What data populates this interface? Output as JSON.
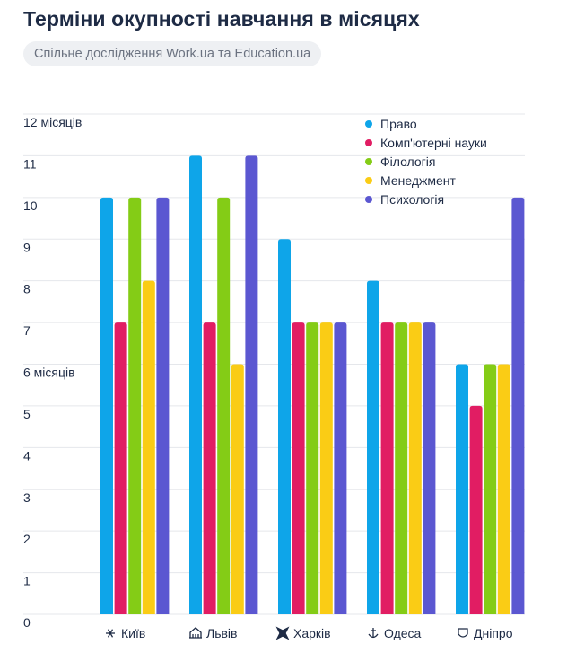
{
  "header": {
    "title": "Терміни окупності навчання в місяцях",
    "subtitle": "Спільне дослідження Work.ua та Education.ua"
  },
  "chart_data": {
    "type": "bar",
    "ylim": [
      0,
      12
    ],
    "yticks": [
      {
        "value": 0,
        "label": "0"
      },
      {
        "value": 1,
        "label": "1"
      },
      {
        "value": 2,
        "label": "2"
      },
      {
        "value": 3,
        "label": "3"
      },
      {
        "value": 4,
        "label": "4"
      },
      {
        "value": 5,
        "label": "5"
      },
      {
        "value": 6,
        "label": "6 місяців"
      },
      {
        "value": 7,
        "label": "7"
      },
      {
        "value": 8,
        "label": "8"
      },
      {
        "value": 9,
        "label": "9"
      },
      {
        "value": 10,
        "label": "10"
      },
      {
        "value": 11,
        "label": "11"
      },
      {
        "value": 12,
        "label": "12 місяців"
      }
    ],
    "categories": [
      {
        "label": "Київ",
        "icon": "kyiv-landmark-icon"
      },
      {
        "label": "Львів",
        "icon": "lviv-landmark-icon"
      },
      {
        "label": "Харків",
        "icon": "kharkiv-landmark-icon"
      },
      {
        "label": "Одеса",
        "icon": "odesa-anchor-icon"
      },
      {
        "label": "Дніпро",
        "icon": "dnipro-landmark-icon"
      }
    ],
    "series": [
      {
        "name": "Право",
        "color": "#0ea5e9",
        "values": [
          10,
          11,
          9,
          8,
          6
        ]
      },
      {
        "name": "Комп'ютерні науки",
        "color": "#e11d63",
        "values": [
          7,
          7,
          7,
          7,
          5
        ]
      },
      {
        "name": "Філологія",
        "color": "#84cc16",
        "values": [
          10,
          10,
          7,
          7,
          6
        ]
      },
      {
        "name": "Менеджмент",
        "color": "#facc15",
        "values": [
          8,
          6,
          7,
          7,
          6
        ]
      },
      {
        "name": "Психологія",
        "color": "#5b57d1",
        "values": [
          10,
          11,
          7,
          7,
          10
        ]
      }
    ],
    "grid": true,
    "legend": "top-right",
    "colors": {
      "grid": "#e5e7eb",
      "text": "#1e2b45",
      "axis_label": "#1e2b45"
    }
  }
}
